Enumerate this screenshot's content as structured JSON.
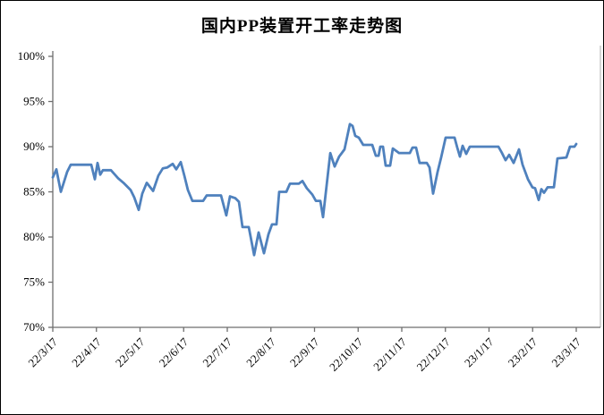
{
  "chart_data": {
    "type": "line",
    "title": "国内PP装置开工率走势图",
    "xlabel": "",
    "ylabel": "",
    "ylim": [
      70,
      100
    ],
    "y_unit": "%",
    "grid": false,
    "legend": "none",
    "line_color": "#4F81BD",
    "axis_color": "#6e6e6e",
    "plot_border_color": "#bfbfbf",
    "y_ticks": [
      {
        "value": 100,
        "label": "100%"
      },
      {
        "value": 95,
        "label": "95%"
      },
      {
        "value": 90,
        "label": "90%"
      },
      {
        "value": 85,
        "label": "85%"
      },
      {
        "value": 80,
        "label": "80%"
      },
      {
        "value": 75,
        "label": "75%"
      },
      {
        "value": 70,
        "label": "70%"
      }
    ],
    "x_tick_labels": [
      "22/3/17",
      "22/4/17",
      "22/5/17",
      "22/6/17",
      "22/7/17",
      "22/8/17",
      "22/9/17",
      "22/10/17",
      "22/11/17",
      "22/12/17",
      "23/1/17",
      "23/2/17",
      "23/3/17"
    ],
    "x_axis_note": "weeks from 2022-03-17 to 2023-03-17, t in weeks",
    "series": [
      {
        "points": [
          [
            0,
            86.6
          ],
          [
            0.36,
            87.5
          ],
          [
            0.8,
            85
          ],
          [
            1.42,
            87.2
          ],
          [
            1.78,
            88
          ],
          [
            3.82,
            88
          ],
          [
            4.18,
            86.4
          ],
          [
            4.44,
            88.2
          ],
          [
            4.71,
            86.9
          ],
          [
            4.98,
            87.4
          ],
          [
            5.78,
            87.4
          ],
          [
            6.49,
            86.5
          ],
          [
            7.02,
            86
          ],
          [
            7.73,
            85.2
          ],
          [
            8.09,
            84.4
          ],
          [
            8.53,
            83
          ],
          [
            8.89,
            84.8
          ],
          [
            9.33,
            86
          ],
          [
            9.96,
            85.1
          ],
          [
            10.49,
            86.8
          ],
          [
            10.93,
            87.6
          ],
          [
            11.38,
            87.7
          ],
          [
            11.91,
            88.1
          ],
          [
            12.27,
            87.5
          ],
          [
            12.71,
            88.3
          ],
          [
            13.07,
            86.8
          ],
          [
            13.42,
            85.2
          ],
          [
            13.87,
            84
          ],
          [
            14.93,
            84
          ],
          [
            15.29,
            84.6
          ],
          [
            16.71,
            84.6
          ],
          [
            17.24,
            82.4
          ],
          [
            17.6,
            84.5
          ],
          [
            18.13,
            84.3
          ],
          [
            18.49,
            83.9
          ],
          [
            18.84,
            81.1
          ],
          [
            19.47,
            81.1
          ],
          [
            20,
            78
          ],
          [
            20.44,
            80.5
          ],
          [
            20.98,
            78.2
          ],
          [
            21.42,
            80.3
          ],
          [
            21.78,
            81.4
          ],
          [
            22.22,
            81.4
          ],
          [
            22.49,
            85
          ],
          [
            23.2,
            85
          ],
          [
            23.56,
            85.9
          ],
          [
            24.44,
            85.9
          ],
          [
            24.8,
            86.2
          ],
          [
            25.24,
            85.4
          ],
          [
            25.78,
            84.7
          ],
          [
            26.13,
            84
          ],
          [
            26.58,
            84
          ],
          [
            26.84,
            82.2
          ],
          [
            27.56,
            89.3
          ],
          [
            28,
            87.8
          ],
          [
            28.44,
            88.9
          ],
          [
            28.98,
            89.7
          ],
          [
            29.51,
            92.5
          ],
          [
            29.78,
            92.3
          ],
          [
            30.04,
            91.2
          ],
          [
            30.4,
            91
          ],
          [
            30.84,
            90.2
          ],
          [
            31.73,
            90.2
          ],
          [
            32.09,
            89
          ],
          [
            32.36,
            89
          ],
          [
            32.53,
            90
          ],
          [
            32.8,
            90
          ],
          [
            33.07,
            87.9
          ],
          [
            33.51,
            87.9
          ],
          [
            33.78,
            89.8
          ],
          [
            34.4,
            89.3
          ],
          [
            35.47,
            89.3
          ],
          [
            35.73,
            89.9
          ],
          [
            36.09,
            89.9
          ],
          [
            36.44,
            88.2
          ],
          [
            37.16,
            88.2
          ],
          [
            37.42,
            87.7
          ],
          [
            37.78,
            84.8
          ],
          [
            38.22,
            87.2
          ],
          [
            38.58,
            88.8
          ],
          [
            39.02,
            91
          ],
          [
            39.91,
            91
          ],
          [
            40.18,
            89.9
          ],
          [
            40.44,
            88.9
          ],
          [
            40.71,
            90.1
          ],
          [
            41.07,
            89.2
          ],
          [
            41.42,
            90
          ],
          [
            44.27,
            90
          ],
          [
            44.62,
            89.3
          ],
          [
            44.98,
            88.5
          ],
          [
            45.33,
            89.1
          ],
          [
            45.78,
            88.2
          ],
          [
            46.31,
            89.7
          ],
          [
            46.67,
            88
          ],
          [
            47.2,
            86.4
          ],
          [
            47.64,
            85.5
          ],
          [
            47.91,
            85.4
          ],
          [
            48.27,
            84.1
          ],
          [
            48.53,
            85.3
          ],
          [
            48.8,
            84.9
          ],
          [
            49.16,
            85.5
          ],
          [
            49.78,
            85.5
          ],
          [
            50.13,
            88.7
          ],
          [
            51.02,
            88.8
          ],
          [
            51.38,
            90
          ],
          [
            51.82,
            90
          ],
          [
            52,
            90.3
          ]
        ]
      }
    ]
  }
}
